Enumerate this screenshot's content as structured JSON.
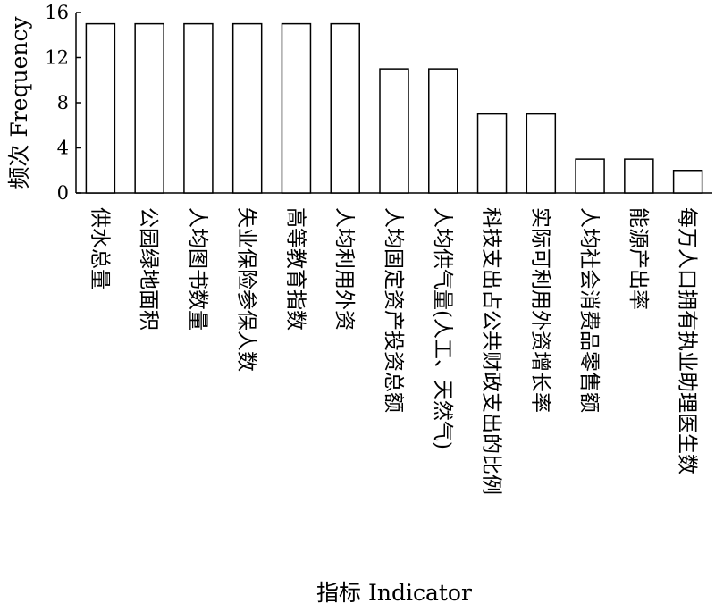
{
  "chart_data": {
    "type": "bar",
    "categories": [
      "供水总量",
      "公园绿地面积",
      "人均图书数量",
      "失业保险参保人数",
      "高等教育指数",
      "人均利用外资",
      "人均固定资产投资总额",
      "人均供气量(人工、天然气)",
      "科技支出占公共财政支出的比例",
      "实际可利用外资增长率",
      "人均社会消费品零售额",
      "能源产出率",
      "每万人口拥有执业助理医生数"
    ],
    "values": [
      15,
      15,
      15,
      15,
      15,
      15,
      11,
      11,
      7,
      7,
      3,
      3,
      2
    ],
    "xlabel": "指标 Indicator",
    "ylabel": "频次 Frequency",
    "ylim": [
      0,
      16
    ],
    "yticks": [
      0,
      4,
      8,
      12,
      16
    ],
    "grid": false,
    "bar_fill": "#ffffff",
    "bar_stroke": "#000000"
  }
}
